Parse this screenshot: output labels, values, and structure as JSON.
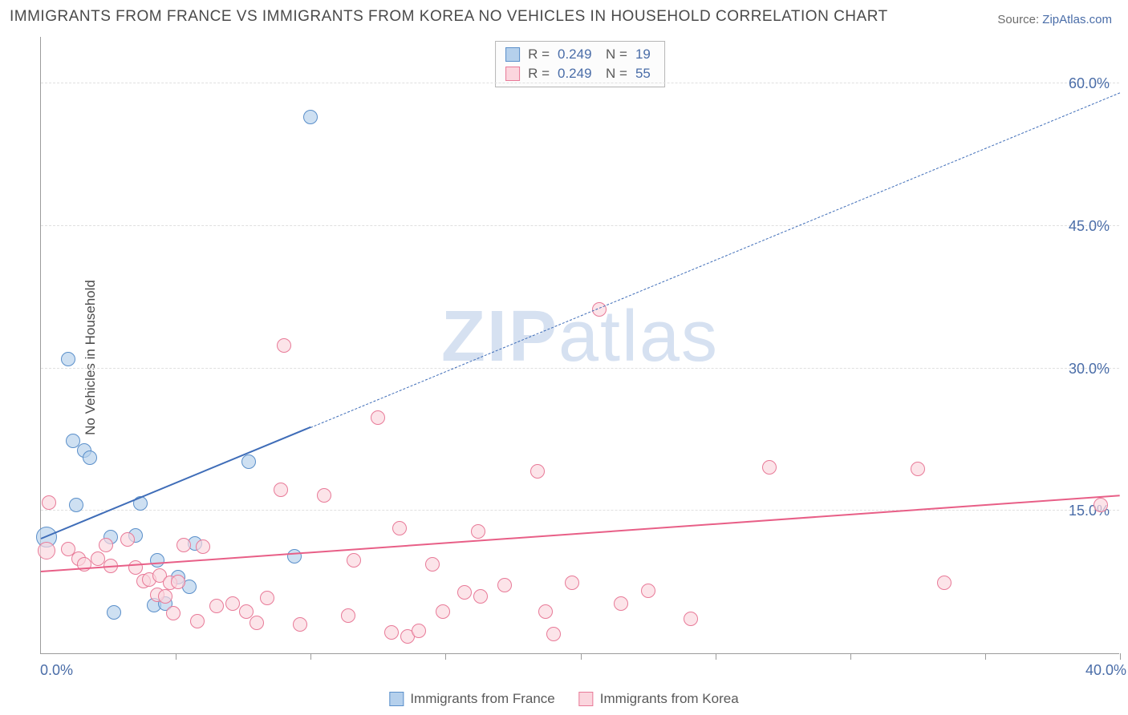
{
  "title": "IMMIGRANTS FROM FRANCE VS IMMIGRANTS FROM KOREA NO VEHICLES IN HOUSEHOLD CORRELATION CHART",
  "source_label": "Source:",
  "source_link": "ZipAtlas.com",
  "ylabel": "No Vehicles in Household",
  "watermark_a": "ZIP",
  "watermark_b": "atlas",
  "chart": {
    "type": "scatter",
    "background_color": "#ffffff",
    "grid_color": "#e0e0e0",
    "axis_color": "#9c9c9c",
    "xlim": [
      0,
      40
    ],
    "ylim": [
      0,
      65
    ],
    "xtick_labels": [
      {
        "x": 0,
        "label": "0.0%"
      },
      {
        "x": 40,
        "label": "40.0%"
      }
    ],
    "xtick_positions": [
      5,
      10,
      15,
      20,
      25,
      30,
      35,
      40
    ],
    "ytick_labels": [
      {
        "y": 15,
        "label": "15.0%"
      },
      {
        "y": 30,
        "label": "30.0%"
      },
      {
        "y": 45,
        "label": "45.0%"
      },
      {
        "y": 60,
        "label": "60.0%"
      }
    ],
    "series": [
      {
        "name": "Immigrants from France",
        "marker_fill": "#b5d0ec",
        "marker_stroke": "#5a8fca",
        "marker_radius": 9,
        "line_color": "#3f6db8",
        "line_width": 2.5,
        "R": "0.249",
        "N": "19",
        "regression": {
          "x1": 0,
          "y1": 12,
          "x2": 40,
          "y2": 59,
          "solid_until_x": 10
        },
        "points": [
          {
            "x": 0.2,
            "y": 12.2,
            "r": 13
          },
          {
            "x": 1.0,
            "y": 31.0
          },
          {
            "x": 1.2,
            "y": 22.4
          },
          {
            "x": 1.3,
            "y": 15.6
          },
          {
            "x": 1.6,
            "y": 21.4
          },
          {
            "x": 1.8,
            "y": 20.6
          },
          {
            "x": 2.6,
            "y": 12.2
          },
          {
            "x": 2.7,
            "y": 4.3
          },
          {
            "x": 3.5,
            "y": 12.4
          },
          {
            "x": 3.7,
            "y": 15.8
          },
          {
            "x": 4.2,
            "y": 5.1
          },
          {
            "x": 4.6,
            "y": 5.2
          },
          {
            "x": 4.3,
            "y": 9.8
          },
          {
            "x": 5.1,
            "y": 8.0
          },
          {
            "x": 5.5,
            "y": 7.0
          },
          {
            "x": 5.7,
            "y": 11.6
          },
          {
            "x": 7.7,
            "y": 20.2
          },
          {
            "x": 9.4,
            "y": 10.2
          },
          {
            "x": 10.0,
            "y": 56.5
          }
        ]
      },
      {
        "name": "Immigrants from Korea",
        "marker_fill": "#fbd6de",
        "marker_stroke": "#e87a98",
        "marker_radius": 9,
        "line_color": "#e85f87",
        "line_width": 2.5,
        "R": "0.249",
        "N": "55",
        "regression": {
          "x1": 0,
          "y1": 8.5,
          "x2": 40,
          "y2": 16.5,
          "solid_until_x": 40
        },
        "points": [
          {
            "x": 0.2,
            "y": 10.8,
            "r": 11
          },
          {
            "x": 0.3,
            "y": 15.9
          },
          {
            "x": 1.0,
            "y": 11.0
          },
          {
            "x": 1.4,
            "y": 10.0
          },
          {
            "x": 1.6,
            "y": 9.4
          },
          {
            "x": 2.1,
            "y": 10.0
          },
          {
            "x": 2.4,
            "y": 11.4
          },
          {
            "x": 2.6,
            "y": 9.2
          },
          {
            "x": 3.2,
            "y": 12.0
          },
          {
            "x": 3.5,
            "y": 9.0
          },
          {
            "x": 3.8,
            "y": 7.6
          },
          {
            "x": 4.0,
            "y": 7.8
          },
          {
            "x": 4.3,
            "y": 6.2
          },
          {
            "x": 4.4,
            "y": 8.2
          },
          {
            "x": 4.6,
            "y": 6.0
          },
          {
            "x": 4.8,
            "y": 7.4
          },
          {
            "x": 4.9,
            "y": 4.2
          },
          {
            "x": 5.1,
            "y": 7.5
          },
          {
            "x": 5.3,
            "y": 11.4
          },
          {
            "x": 5.8,
            "y": 3.4
          },
          {
            "x": 6.0,
            "y": 11.2
          },
          {
            "x": 6.5,
            "y": 5.0
          },
          {
            "x": 7.1,
            "y": 5.2
          },
          {
            "x": 7.6,
            "y": 4.4
          },
          {
            "x": 8.0,
            "y": 3.2
          },
          {
            "x": 8.4,
            "y": 5.8
          },
          {
            "x": 8.9,
            "y": 17.2
          },
          {
            "x": 9.0,
            "y": 32.4
          },
          {
            "x": 9.6,
            "y": 3.0
          },
          {
            "x": 10.5,
            "y": 16.6
          },
          {
            "x": 11.4,
            "y": 4.0
          },
          {
            "x": 11.6,
            "y": 9.8
          },
          {
            "x": 12.5,
            "y": 24.8
          },
          {
            "x": 13.0,
            "y": 2.2
          },
          {
            "x": 13.3,
            "y": 13.2
          },
          {
            "x": 13.6,
            "y": 1.8
          },
          {
            "x": 14.0,
            "y": 2.4
          },
          {
            "x": 14.5,
            "y": 9.4
          },
          {
            "x": 14.9,
            "y": 4.4
          },
          {
            "x": 15.7,
            "y": 6.4
          },
          {
            "x": 16.2,
            "y": 12.8
          },
          {
            "x": 16.3,
            "y": 6.0
          },
          {
            "x": 17.2,
            "y": 7.2
          },
          {
            "x": 18.4,
            "y": 19.2
          },
          {
            "x": 18.7,
            "y": 4.4
          },
          {
            "x": 19.0,
            "y": 2.0
          },
          {
            "x": 19.7,
            "y": 7.4
          },
          {
            "x": 20.7,
            "y": 36.2
          },
          {
            "x": 21.5,
            "y": 5.2
          },
          {
            "x": 22.5,
            "y": 6.6
          },
          {
            "x": 24.1,
            "y": 3.6
          },
          {
            "x": 27.0,
            "y": 19.6
          },
          {
            "x": 32.5,
            "y": 19.4
          },
          {
            "x": 33.5,
            "y": 7.4
          },
          {
            "x": 39.3,
            "y": 15.6
          }
        ]
      }
    ]
  }
}
